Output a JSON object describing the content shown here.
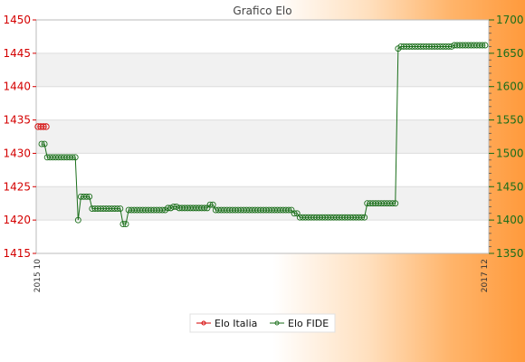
{
  "chart_data": {
    "type": "line",
    "title": "Grafico Elo",
    "legend_position": "bottom",
    "grid": true,
    "y_left": {
      "range": [
        1415,
        1450
      ],
      "ticks": [
        1415,
        1420,
        1425,
        1430,
        1435,
        1440,
        1445,
        1450
      ],
      "color": "#d40000"
    },
    "y_right": {
      "range": [
        1350,
        1700
      ],
      "ticks": [
        1350,
        1400,
        1450,
        1500,
        1550,
        1600,
        1650,
        1700
      ],
      "color": "#1a6e1a"
    },
    "x_labels": [
      "2015 10",
      "2017 12"
    ],
    "series": [
      {
        "name": "Elo Italia",
        "axis": "left",
        "color": "#d40000",
        "values": [
          1434,
          1434,
          1434,
          1434
        ]
      },
      {
        "name": "Elo FIDE",
        "axis": "right",
        "color": "#1a6e1a",
        "values": [
          1514,
          1514,
          1494,
          1494,
          1494,
          1494,
          1494,
          1494,
          1494,
          1494,
          1494,
          1494,
          1494,
          1400,
          1435,
          1435,
          1435,
          1435,
          1417,
          1417,
          1417,
          1417,
          1417,
          1417,
          1417,
          1417,
          1417,
          1417,
          1417,
          1394,
          1394,
          1415,
          1415,
          1415,
          1415,
          1415,
          1415,
          1415,
          1415,
          1415,
          1415,
          1415,
          1415,
          1415,
          1415,
          1418,
          1418,
          1420,
          1420,
          1418,
          1418,
          1418,
          1418,
          1418,
          1418,
          1418,
          1418,
          1418,
          1418,
          1418,
          1423,
          1423,
          1415,
          1415,
          1415,
          1415,
          1415,
          1415,
          1415,
          1415,
          1415,
          1415,
          1415,
          1415,
          1415,
          1415,
          1415,
          1415,
          1415,
          1415,
          1415,
          1415,
          1415,
          1415,
          1415,
          1415,
          1415,
          1415,
          1415,
          1415,
          1410,
          1410,
          1404,
          1404,
          1404,
          1404,
          1404,
          1404,
          1404,
          1404,
          1404,
          1404,
          1404,
          1404,
          1404,
          1404,
          1404,
          1404,
          1404,
          1404,
          1404,
          1404,
          1404,
          1404,
          1404,
          1404,
          1425,
          1425,
          1425,
          1425,
          1425,
          1425,
          1425,
          1425,
          1425,
          1425,
          1425,
          1657,
          1660,
          1660,
          1660,
          1660,
          1660,
          1660,
          1660,
          1660,
          1660,
          1660,
          1660,
          1660,
          1660,
          1660,
          1660,
          1660,
          1660,
          1660,
          1660,
          1662,
          1662,
          1662,
          1662,
          1662,
          1662,
          1662,
          1662,
          1662,
          1662,
          1662,
          1662
        ]
      }
    ]
  }
}
